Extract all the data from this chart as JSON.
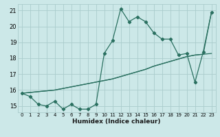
{
  "title": "",
  "xlabel": "Humidex (Indice chaleur)",
  "ylabel": "",
  "bg_color": "#cce8e8",
  "grid_color": "#aacccc",
  "line_color": "#2a7060",
  "x_values": [
    0,
    1,
    2,
    3,
    4,
    5,
    6,
    7,
    8,
    9,
    10,
    11,
    12,
    13,
    14,
    15,
    16,
    17,
    18,
    19,
    20,
    21,
    22,
    23
  ],
  "series1": [
    15.8,
    15.6,
    15.1,
    15.0,
    15.3,
    14.8,
    15.1,
    14.8,
    14.8,
    15.1,
    18.3,
    19.1,
    21.1,
    20.3,
    20.6,
    20.3,
    19.6,
    19.2,
    19.2,
    18.2,
    18.3,
    16.5,
    18.4,
    20.9
  ],
  "series2": [
    15.8,
    15.85,
    15.9,
    15.95,
    16.0,
    16.1,
    16.2,
    16.3,
    16.4,
    16.5,
    16.6,
    16.7,
    16.85,
    17.0,
    17.15,
    17.3,
    17.5,
    17.65,
    17.8,
    17.95,
    18.1,
    18.2,
    18.25,
    18.3
  ],
  "series3": [
    15.8,
    15.85,
    15.9,
    15.95,
    16.0,
    16.1,
    16.2,
    16.3,
    16.4,
    16.5,
    16.6,
    16.7,
    16.85,
    17.0,
    17.15,
    17.3,
    17.5,
    17.65,
    17.8,
    17.95,
    18.1,
    18.2,
    18.25,
    20.9
  ],
  "ylim": [
    14.6,
    21.4
  ],
  "xlim": [
    -0.5,
    23.5
  ],
  "yticks": [
    15,
    16,
    17,
    18,
    19,
    20,
    21
  ],
  "xticks": [
    0,
    1,
    2,
    3,
    4,
    5,
    6,
    7,
    8,
    9,
    10,
    11,
    12,
    13,
    14,
    15,
    16,
    17,
    18,
    19,
    20,
    21,
    22,
    23
  ]
}
